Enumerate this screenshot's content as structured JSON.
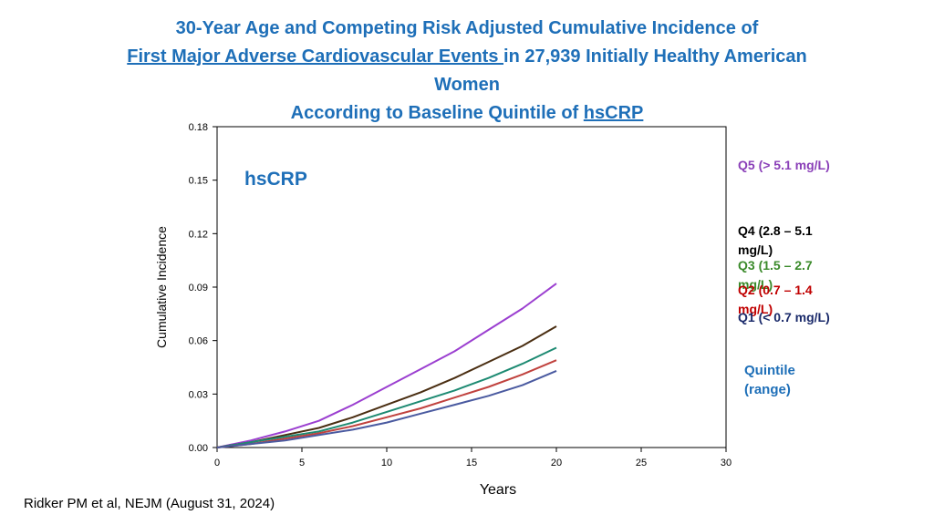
{
  "title": {
    "line1": "30-Year Age and Competing Risk Adjusted Cumulative Incidence of",
    "line2_underlined": "First Major Adverse Cardiovascular Events ",
    "line2_rest": "in 27,939 Initially Healthy American",
    "line3": "Women",
    "line4_pre": "According to Baseline Quintile of ",
    "line4_underlined": "hsCRP"
  },
  "inset_label": "hsCRP",
  "legend_title": "Quintile (range)",
  "source": "Ridker PM et al, NEJM (August 31, 2024)",
  "colors": {
    "title": "#1e6fb8",
    "q5": "#9b3fd0",
    "q4": "#4a2e12",
    "q3": "#1d8a72",
    "q2": "#c0423e",
    "q1": "#4a5aa0"
  },
  "legend_colors": {
    "q5": "#8a3fb8",
    "q4": "#000000",
    "q3": "#3a8a2a",
    "q2": "#c00000",
    "q1": "#1a2a6a"
  },
  "chart_data": {
    "type": "line",
    "title": "",
    "xlabel": "Years",
    "ylabel": "Cumulative Incidence",
    "xlim": [
      0,
      30
    ],
    "ylim": [
      0,
      0.18
    ],
    "xticks": [
      0,
      5,
      10,
      15,
      20,
      25,
      30
    ],
    "yticks": [
      "0.00",
      "0.03",
      "0.06",
      "0.09",
      "0.12",
      "0.15",
      "0.18"
    ],
    "grid": false,
    "legend_position": "right",
    "series": [
      {
        "key": "q5",
        "name": "Q5  (> 5.1 mg/L)",
        "x": [
          0,
          2,
          4,
          6,
          8,
          10,
          12,
          14,
          16,
          18,
          20
        ],
        "y": [
          0,
          0.004,
          0.009,
          0.015,
          0.024,
          0.034,
          0.044,
          0.054,
          0.066,
          0.078,
          0.092
        ]
      },
      {
        "key": "q4",
        "name": "Q4  (2.8 – 5.1 mg/L)",
        "x": [
          0,
          2,
          4,
          6,
          8,
          10,
          12,
          14,
          16,
          18,
          20
        ],
        "y": [
          0,
          0.003,
          0.007,
          0.011,
          0.017,
          0.024,
          0.031,
          0.039,
          0.048,
          0.057,
          0.068
        ]
      },
      {
        "key": "q3",
        "name": "Q3  (1.5 – 2.7 mg/L)",
        "x": [
          0,
          2,
          4,
          6,
          8,
          10,
          12,
          14,
          16,
          18,
          20
        ],
        "y": [
          0,
          0.003,
          0.006,
          0.009,
          0.014,
          0.02,
          0.026,
          0.032,
          0.039,
          0.047,
          0.056
        ]
      },
      {
        "key": "q2",
        "name": "Q2  (0.7 – 1.4 mg/L)",
        "x": [
          0,
          2,
          4,
          6,
          8,
          10,
          12,
          14,
          16,
          18,
          20
        ],
        "y": [
          0,
          0.002,
          0.005,
          0.008,
          0.012,
          0.017,
          0.022,
          0.028,
          0.034,
          0.041,
          0.049
        ]
      },
      {
        "key": "q1",
        "name": "Q1  (< 0.7 mg/L)",
        "x": [
          0,
          2,
          4,
          6,
          8,
          10,
          12,
          14,
          16,
          18,
          20
        ],
        "y": [
          0,
          0.002,
          0.004,
          0.007,
          0.01,
          0.014,
          0.019,
          0.024,
          0.029,
          0.035,
          0.043
        ]
      }
    ]
  }
}
